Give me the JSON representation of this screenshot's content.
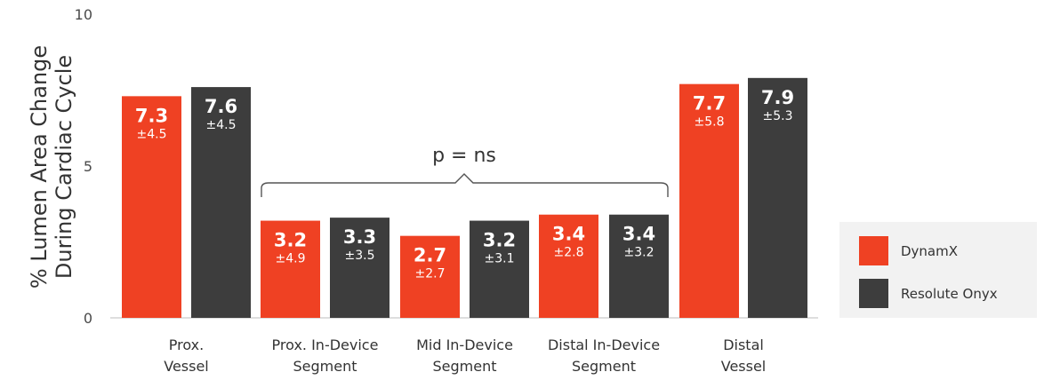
{
  "chart_data": {
    "type": "bar",
    "ylabel": [
      "% Lumen Area Change",
      "During Cardiac Cycle"
    ],
    "ylim": [
      0,
      10
    ],
    "yticks": [
      "0",
      "5",
      "10"
    ],
    "categories": [
      [
        "Prox.",
        "Vessel"
      ],
      [
        "Prox. In-Device",
        "Segment"
      ],
      [
        "Mid In-Device",
        "Segment"
      ],
      [
        "Distal  In-Device",
        "Segment"
      ],
      [
        "Distal",
        "Vessel"
      ]
    ],
    "series": [
      {
        "name": "DynamX",
        "color": "#ef4123",
        "values": [
          7.3,
          3.2,
          2.7,
          3.4,
          7.7
        ],
        "value_labels": [
          "7.3",
          "3.2",
          "2.7",
          "3.4",
          "7.7"
        ],
        "sd_labels": [
          "±4.5",
          "±4.9",
          "±2.7",
          "±2.8",
          "±5.8"
        ],
        "sd_color": "#ffffff"
      },
      {
        "name": "Resolute Onyx",
        "color": "#3d3d3d",
        "values": [
          7.6,
          3.3,
          3.2,
          3.4,
          7.9
        ],
        "value_labels": [
          "7.6",
          "3.3",
          "3.2",
          "3.4",
          "7.9"
        ],
        "sd_labels": [
          "±4.5",
          "±3.5",
          "±3.1",
          "±3.2",
          "±5.3"
        ],
        "sd_color": "#ffffff"
      }
    ],
    "annotation": "p = ns",
    "legend": {
      "position": "right",
      "background": "#f2f2f2"
    },
    "grid": false
  }
}
